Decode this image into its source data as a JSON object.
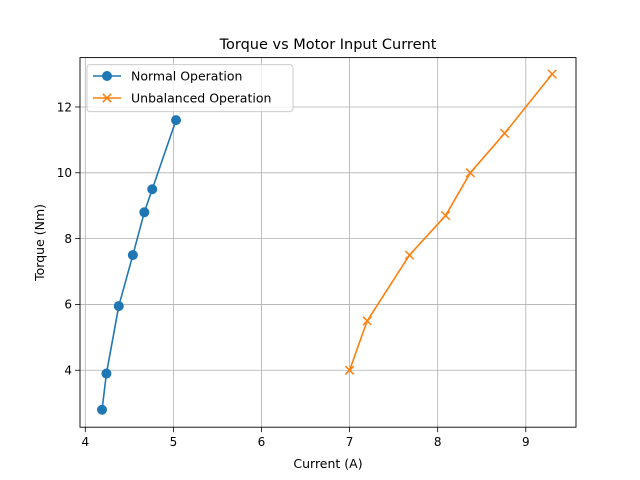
{
  "chart_data": {
    "type": "line",
    "title": "Torque vs Motor Input Current",
    "xlabel": "Current (A)",
    "ylabel": "Torque (Nm)",
    "xlim": [
      3.94,
      9.57
    ],
    "ylim": [
      2.27,
      13.5
    ],
    "xticks": [
      4,
      5,
      6,
      7,
      8,
      9
    ],
    "yticks": [
      4,
      6,
      8,
      10,
      12
    ],
    "grid": true,
    "legend_position": "upper-left",
    "series": [
      {
        "name": "Normal Operation",
        "color": "#1f77b4",
        "marker": "circle",
        "x": [
          4.19,
          4.24,
          4.38,
          4.54,
          4.67,
          4.76,
          5.03
        ],
        "y": [
          2.8,
          3.9,
          5.95,
          7.5,
          8.8,
          9.5,
          11.6
        ]
      },
      {
        "name": "Unbalanced Operation",
        "color": "#ff7f0e",
        "marker": "x",
        "x": [
          7.0,
          7.2,
          7.68,
          8.09,
          8.37,
          8.76,
          9.3
        ],
        "y": [
          4.0,
          5.5,
          7.5,
          8.7,
          10.0,
          11.2,
          13.0
        ]
      }
    ]
  }
}
